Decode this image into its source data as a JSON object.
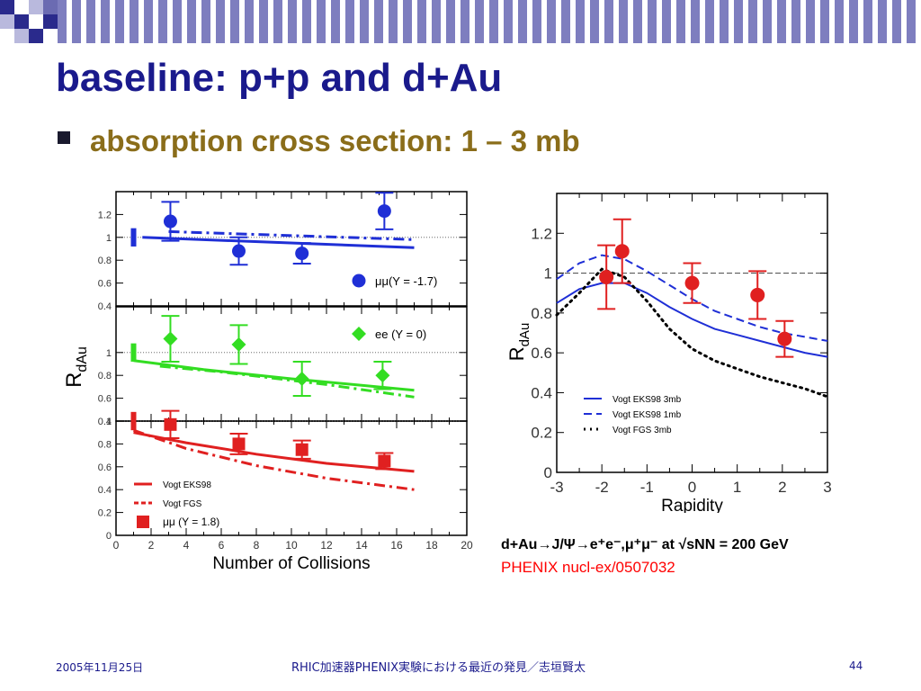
{
  "slide": {
    "title": "baseline: p+p and d+Au",
    "bullet": "absorption cross section: 1 – 3 mb",
    "caption_line1": "d+Au→J/Ψ→e⁺e⁻,μ⁺μ⁻  at √sNN = 200 GeV",
    "caption_line2": "PHENIX nucl-ex/0507032",
    "footer_date": "2005年11月25日",
    "footer_center": "RHIC加速器PHENIX実験における最近の発見／志垣賢太",
    "footer_page": "44"
  },
  "colors": {
    "title": "#1a1a8c",
    "bullet_text": "#8a6d1a",
    "blue": "#1f2fd6",
    "green": "#33dd22",
    "red": "#e02020",
    "caption_red": "#ff0000"
  },
  "chart_data": [
    {
      "type": "scatter",
      "title": "",
      "xlabel": "Number of Collisions",
      "ylabel": "RdAu",
      "xlim": [
        0,
        20
      ],
      "x_ticks": [
        "0",
        "2",
        "4",
        "6",
        "8",
        "10",
        "12",
        "14",
        "16",
        "18",
        "20"
      ],
      "panels": [
        {
          "name": "μμ(Y = -1.7)",
          "color": "#1f2fd6",
          "marker": "circle",
          "ylim": [
            0.4,
            1.4
          ],
          "y_ticks": [
            "0.4",
            "0.6",
            "0.8",
            "1",
            "1.2"
          ],
          "points": [
            {
              "x": 3.1,
              "y": 1.14,
              "err": 0.17
            },
            {
              "x": 7.0,
              "y": 0.88,
              "err": 0.12
            },
            {
              "x": 10.6,
              "y": 0.86,
              "err": 0.09
            },
            {
              "x": 15.3,
              "y": 1.23,
              "err": 0.16
            }
          ],
          "sys_bar": {
            "x": 1.0,
            "y": 1.0,
            "err": 0.08
          },
          "curves": [
            {
              "style": "solid",
              "points": [
                [
                  1.5,
                  1.0
                ],
                [
                  17,
                  0.91
                ]
              ]
            },
            {
              "style": "dashdot",
              "points": [
                [
                  3,
                  1.05
                ],
                [
                  17,
                  0.98
                ]
              ]
            }
          ]
        },
        {
          "name": "ee (Y = 0)",
          "color": "#33dd22",
          "marker": "diamond",
          "ylim": [
            0.4,
            1.4
          ],
          "y_ticks": [
            "0.4",
            "0.6",
            "0.8",
            "1"
          ],
          "points": [
            {
              "x": 3.1,
              "y": 1.12,
              "err": 0.2
            },
            {
              "x": 7.0,
              "y": 1.07,
              "err": 0.17
            },
            {
              "x": 10.6,
              "y": 0.77,
              "err": 0.15
            },
            {
              "x": 15.2,
              "y": 0.8,
              "err": 0.12
            }
          ],
          "sys_bar": {
            "x": 1.0,
            "y": 1.0,
            "err": 0.08
          },
          "curves": [
            {
              "style": "solid",
              "points": [
                [
                  1,
                  0.93
                ],
                [
                  5,
                  0.85
                ],
                [
                  10,
                  0.77
                ],
                [
                  17,
                  0.67
                ]
              ]
            },
            {
              "style": "dashdot",
              "points": [
                [
                  2.5,
                  0.88
                ],
                [
                  6,
                  0.83
                ],
                [
                  12,
                  0.72
                ],
                [
                  17,
                  0.61
                ]
              ]
            }
          ]
        },
        {
          "name": "μμ (Y = 1.8)",
          "color": "#e02020",
          "marker": "square",
          "ylim": [
            0,
            1.0
          ],
          "y_ticks": [
            "0",
            "0.2",
            "0.4",
            "0.6",
            "0.8",
            "1"
          ],
          "points": [
            {
              "x": 3.1,
              "y": 0.97,
              "err": 0.12
            },
            {
              "x": 7.0,
              "y": 0.8,
              "err": 0.09
            },
            {
              "x": 10.6,
              "y": 0.75,
              "err": 0.08
            },
            {
              "x": 15.3,
              "y": 0.65,
              "err": 0.07
            }
          ],
          "sys_bar": {
            "x": 1.0,
            "y": 1.0,
            "err": 0.08
          },
          "curves": [
            {
              "style": "solid",
              "points": [
                [
                  1,
                  0.9
                ],
                [
                  4,
                  0.81
                ],
                [
                  8,
                  0.71
                ],
                [
                  12,
                  0.63
                ],
                [
                  17,
                  0.56
                ]
              ]
            },
            {
              "style": "dashdot",
              "points": [
                [
                  1,
                  0.92
                ],
                [
                  4,
                  0.76
                ],
                [
                  8,
                  0.61
                ],
                [
                  12,
                  0.5
                ],
                [
                  17,
                  0.4
                ]
              ]
            }
          ],
          "legend": [
            "Vogt EKS98",
            "Vogt FGS",
            "μμ (Y = 1.8)"
          ]
        }
      ]
    },
    {
      "type": "scatter",
      "title": "",
      "xlabel": "Rapidity",
      "ylabel": "RdAu",
      "xlim": [
        -3,
        3
      ],
      "ylim": [
        0,
        1.4
      ],
      "x_ticks": [
        "-3",
        "-2",
        "-1",
        "0",
        "1",
        "2",
        "3"
      ],
      "y_ticks": [
        "0",
        "0.2",
        "0.4",
        "0.6",
        "0.8",
        "1",
        "1.2"
      ],
      "points": [
        {
          "x": -1.9,
          "y": 0.98,
          "err": 0.16
        },
        {
          "x": -1.55,
          "y": 1.11,
          "err": 0.16
        },
        {
          "x": 0.0,
          "y": 0.95,
          "err": 0.1
        },
        {
          "x": 1.45,
          "y": 0.89,
          "err": 0.12
        },
        {
          "x": 2.05,
          "y": 0.67,
          "err": 0.09
        }
      ],
      "series": [
        {
          "name": "Vogt EKS98 3mb",
          "style": "solid",
          "color": "#1f2fd6",
          "x": [
            -3,
            -2.5,
            -2.0,
            -1.5,
            -1.0,
            -0.5,
            0,
            0.5,
            1,
            1.5,
            2,
            2.5,
            3
          ],
          "y": [
            0.85,
            0.92,
            0.95,
            0.95,
            0.9,
            0.83,
            0.77,
            0.72,
            0.69,
            0.66,
            0.63,
            0.6,
            0.58
          ]
        },
        {
          "name": "Vogt EKS98 1mb",
          "style": "dashed",
          "color": "#1f2fd6",
          "x": [
            -3,
            -2.5,
            -2.0,
            -1.5,
            -1.0,
            -0.5,
            0,
            0.5,
            1,
            1.5,
            2,
            2.5,
            3
          ],
          "y": [
            0.97,
            1.05,
            1.09,
            1.07,
            1.01,
            0.94,
            0.87,
            0.81,
            0.77,
            0.73,
            0.7,
            0.68,
            0.66
          ]
        },
        {
          "name": "Vogt FGS 3mb",
          "style": "dotted",
          "color": "#000000",
          "x": [
            -3,
            -2.5,
            -2.0,
            -1.5,
            -1.0,
            -0.5,
            0,
            0.5,
            1,
            1.5,
            2,
            2.5,
            3
          ],
          "y": [
            0.79,
            0.9,
            1.02,
            0.98,
            0.86,
            0.72,
            0.62,
            0.56,
            0.52,
            0.48,
            0.45,
            0.42,
            0.38
          ]
        }
      ],
      "reference_line": 1.0
    }
  ]
}
